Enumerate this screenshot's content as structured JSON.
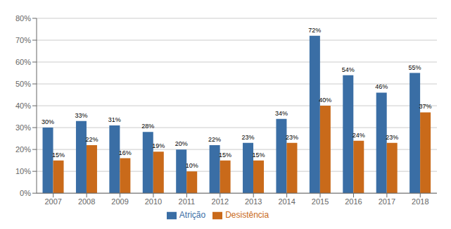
{
  "chart_data": {
    "type": "bar",
    "categories": [
      "2007",
      "2008",
      "2009",
      "2010",
      "2011",
      "2012",
      "2013",
      "2014",
      "2015",
      "2016",
      "2017",
      "2018"
    ],
    "series": [
      {
        "name": "Atrição",
        "color": "#3A6EA5",
        "values": [
          0.3,
          0.33,
          0.31,
          0.28,
          0.2,
          0.22,
          0.23,
          0.34,
          0.72,
          0.54,
          0.46,
          0.55
        ],
        "value_labels": [
          "30%",
          "33%",
          "31%",
          "28%",
          "20%",
          "22%",
          "23%",
          "34%",
          "72%",
          "54%",
          "46%",
          "55%"
        ]
      },
      {
        "name": "Desistência",
        "color": "#C96A1A",
        "values": [
          0.15,
          0.22,
          0.16,
          0.19,
          0.1,
          0.15,
          0.15,
          0.23,
          0.4,
          0.24,
          0.23,
          0.37
        ],
        "value_labels": [
          "15%",
          "22%",
          "16%",
          "19%",
          "10%",
          "15%",
          "15%",
          "23%",
          "40%",
          "24%",
          "23%",
          "37%"
        ]
      }
    ],
    "ylim": [
      0,
      0.8
    ],
    "yticks": [
      {
        "value": 0.0,
        "label": "0%"
      },
      {
        "value": 0.1,
        "label": "10%"
      },
      {
        "value": 0.2,
        "label": "20%"
      },
      {
        "value": 0.3,
        "label": "30%"
      },
      {
        "value": 0.4,
        "label": "40%"
      },
      {
        "value": 0.5,
        "label": "50%"
      },
      {
        "value": 0.6,
        "label": "60%"
      },
      {
        "value": 0.7,
        "label": "70%"
      },
      {
        "value": 0.8,
        "label": "80%"
      }
    ],
    "grid": true,
    "legend": "bottom",
    "data_labels": true
  }
}
